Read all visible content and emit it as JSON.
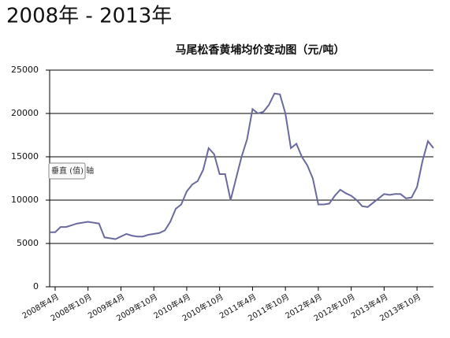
{
  "page_title": "2008年 - 2013年",
  "tooltip": "垂直 (值) 轴",
  "chart_data": {
    "type": "line",
    "title": "马尾松香黄埔均价变动图（元/吨）",
    "categories": [
      null,
      "2008年4月",
      null,
      null,
      null,
      null,
      null,
      "2008年10月",
      null,
      null,
      null,
      null,
      null,
      "2009年4月",
      null,
      null,
      null,
      null,
      null,
      "2009年10月",
      null,
      null,
      null,
      null,
      null,
      "2010年4月",
      null,
      null,
      null,
      null,
      null,
      "2010年10月",
      null,
      null,
      null,
      null,
      null,
      "2011年4月",
      null,
      null,
      null,
      null,
      null,
      "2011年10月",
      null,
      null,
      null,
      null,
      null,
      "2012年4月",
      null,
      null,
      null,
      null,
      null,
      "2012年10月",
      null,
      null,
      null,
      null,
      null,
      "2013年4月",
      null,
      null,
      null,
      null,
      null,
      "2013年10月",
      null,
      null,
      null
    ],
    "values": [
      6300,
      6300,
      6900,
      6900,
      7100,
      7300,
      7400,
      7500,
      7400,
      7300,
      5700,
      5600,
      5500,
      5800,
      6100,
      5900,
      5800,
      5800,
      6000,
      6100,
      6200,
      6500,
      7500,
      9000,
      9500,
      11000,
      11800,
      12200,
      13500,
      16000,
      15300,
      13000,
      13000,
      10000,
      12500,
      15000,
      17000,
      20500,
      20000,
      20200,
      21000,
      22300,
      22200,
      20000,
      16000,
      16500,
      15000,
      14000,
      12500,
      9500,
      9500,
      9600,
      10500,
      11200,
      10800,
      10500,
      10000,
      9300,
      9200,
      9700,
      10200,
      10700,
      10600,
      10700,
      10700,
      10200,
      10300,
      11500,
      14500,
      16800,
      16000
    ],
    "color": "#6a6a9e",
    "ylim": [
      0,
      25000
    ],
    "yticks": [
      0,
      5000,
      10000,
      15000,
      20000,
      25000
    ],
    "grid": true
  }
}
